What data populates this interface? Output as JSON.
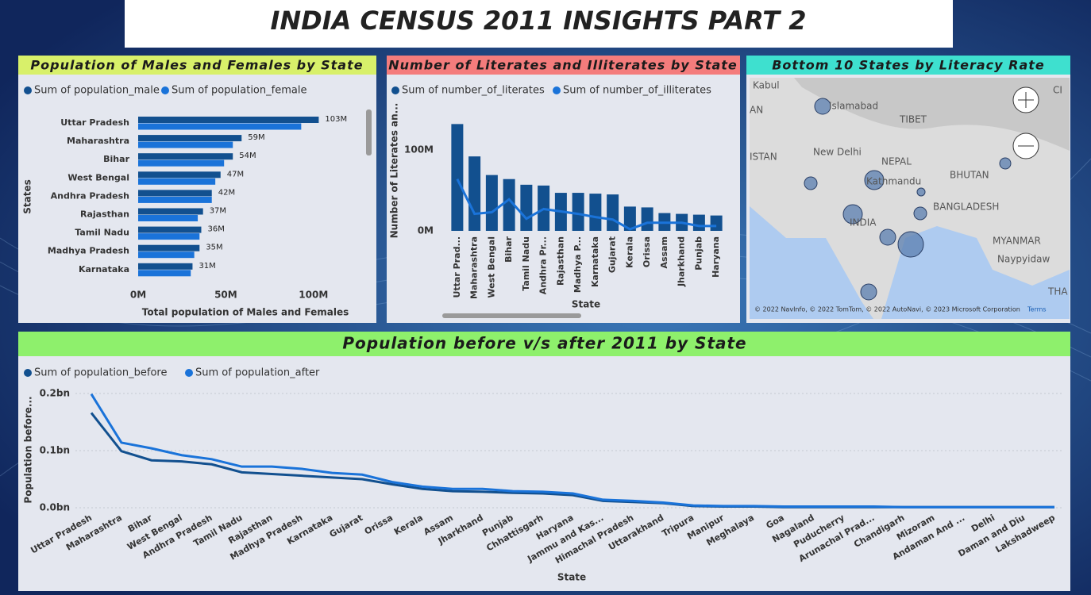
{
  "title": "INDIA CENSUS 2011 INSIGHTS PART 2",
  "chart_data": [
    {
      "type": "hbar",
      "title": "Population of Males and Females by State",
      "x_label": "Total population of Males and Females",
      "y_label": "States",
      "categories": [
        "Uttar Pradesh",
        "Maharashtra",
        "Bihar",
        "West Bengal",
        "Andhra Pradesh",
        "Rajasthan",
        "Tamil Nadu",
        "Madhya Pradesh",
        "Karnataka"
      ],
      "series": [
        {
          "name": "Sum of population_male",
          "color": "#12508f",
          "values": [
            103,
            59,
            54,
            47,
            42,
            37,
            36,
            35,
            31
          ],
          "value_labels": [
            "103M",
            "59M",
            "54M",
            "47M",
            "42M",
            "37M",
            "36M",
            "35M",
            "31M"
          ]
        },
        {
          "name": "Sum of population_female",
          "color": "#1a73d9",
          "values": [
            93,
            54,
            49,
            44,
            42,
            34,
            35,
            32,
            30
          ]
        }
      ],
      "xlim": [
        0,
        125
      ],
      "xticks": [
        {
          "value": 0,
          "label": "0M"
        },
        {
          "value": 50,
          "label": "50M"
        },
        {
          "value": 100,
          "label": "100M"
        }
      ]
    },
    {
      "type": "combo",
      "title": "Number of Literates and Illiterates by State",
      "x_label": "State",
      "y_label": "Number of Literates an...",
      "categories": [
        "Uttar Prad...",
        "Maharashtra",
        "West Bengal",
        "Bihar",
        "Tamil Nadu",
        "Andhra Pr...",
        "Rajasthan",
        "Madhya P...",
        "Karnataka",
        "Gujarat",
        "Kerala",
        "Orissa",
        "Assam",
        "Jharkhand",
        "Punjab",
        "Haryana"
      ],
      "series": [
        {
          "name": "Sum of number_of_literates",
          "color": "#12508f",
          "type": "bar",
          "values": [
            132,
            92,
            69,
            64,
            57,
            56,
            47,
            47,
            46,
            45,
            30,
            29,
            22,
            21,
            20,
            19
          ]
        },
        {
          "name": "Sum of number_of_illiterates",
          "color": "#1a73d9",
          "type": "line",
          "values": [
            64,
            21,
            23,
            39,
            15,
            27,
            24,
            21,
            17,
            14,
            2,
            10,
            10,
            10,
            6,
            6
          ]
        }
      ],
      "ylim": [
        0,
        150
      ],
      "yticks": [
        {
          "value": 0,
          "label": "0M"
        },
        {
          "value": 100,
          "label": "100M"
        }
      ]
    },
    {
      "type": "line",
      "title": "Population before v/s after 2011 by State",
      "x_label": "State",
      "y_label": "Population before...",
      "categories": [
        "Uttar Pradesh",
        "Maharashtra",
        "Bihar",
        "West Bengal",
        "Andhra Pradesh",
        "Tamil Nadu",
        "Rajasthan",
        "Madhya Pradesh",
        "Karnataka",
        "Gujarat",
        "Orissa",
        "Kerala",
        "Assam",
        "Jharkhand",
        "Punjab",
        "Chhattisgarh",
        "Haryana",
        "Jammu and Kas...",
        "Himachal Pradesh",
        "Uttarakhand",
        "Tripura",
        "Manipur",
        "Meghalaya",
        "Goa",
        "Nagaland",
        "Puducherry",
        "Arunachal Prad...",
        "Chandigarh",
        "Mizoram",
        "Andaman And ...",
        "Delhi",
        "Daman and Diu",
        "Lakshadweep"
      ],
      "series": [
        {
          "name": "Sum of population_before",
          "color": "#12508f",
          "values": [
            0.166,
            0.099,
            0.083,
            0.081,
            0.076,
            0.062,
            0.059,
            0.056,
            0.053,
            0.05,
            0.041,
            0.033,
            0.029,
            0.028,
            0.026,
            0.025,
            0.022,
            0.012,
            0.01,
            0.008,
            0.003,
            0.002,
            0.002,
            0.001,
            0.001,
            0.001,
            0.001,
            0.001,
            0.001,
            0.001,
            0.001,
            0.001,
            0.001
          ]
        },
        {
          "name": "Sum of population_after",
          "color": "#1a73d9",
          "values": [
            0.199,
            0.114,
            0.104,
            0.092,
            0.085,
            0.072,
            0.072,
            0.068,
            0.061,
            0.058,
            0.045,
            0.037,
            0.033,
            0.033,
            0.029,
            0.028,
            0.025,
            0.014,
            0.012,
            0.009,
            0.004,
            0.003,
            0.003,
            0.002,
            0.002,
            0.002,
            0.002,
            0.001,
            0.001,
            0.001,
            0.001,
            0.001,
            0.001
          ]
        }
      ],
      "ylim": [
        0,
        0.22
      ],
      "yticks": [
        {
          "value": 0,
          "label": "0.0bn"
        },
        {
          "value": 0.1,
          "label": "0.1bn"
        },
        {
          "value": 0.2,
          "label": "0.2bn"
        }
      ],
      "grid": true
    }
  ],
  "map": {
    "title": "Bottom 10 States by Literacy Rate",
    "labels": [
      "Kabul",
      "AN",
      "Islamabad",
      "TIBET",
      "ISTAN",
      "New Delhi",
      "NEPAL",
      "Kathmandu",
      "BHUTAN",
      "BANGLADESH",
      "INDIA",
      "MYANMAR",
      "Naypyidaw",
      "CI",
      "THA"
    ],
    "attribution": "© 2022 NavInfo, © 2022 TomTom, © 2022 AutoNavi, © 2023 Microsoft Corporation",
    "terms": "Terms"
  }
}
